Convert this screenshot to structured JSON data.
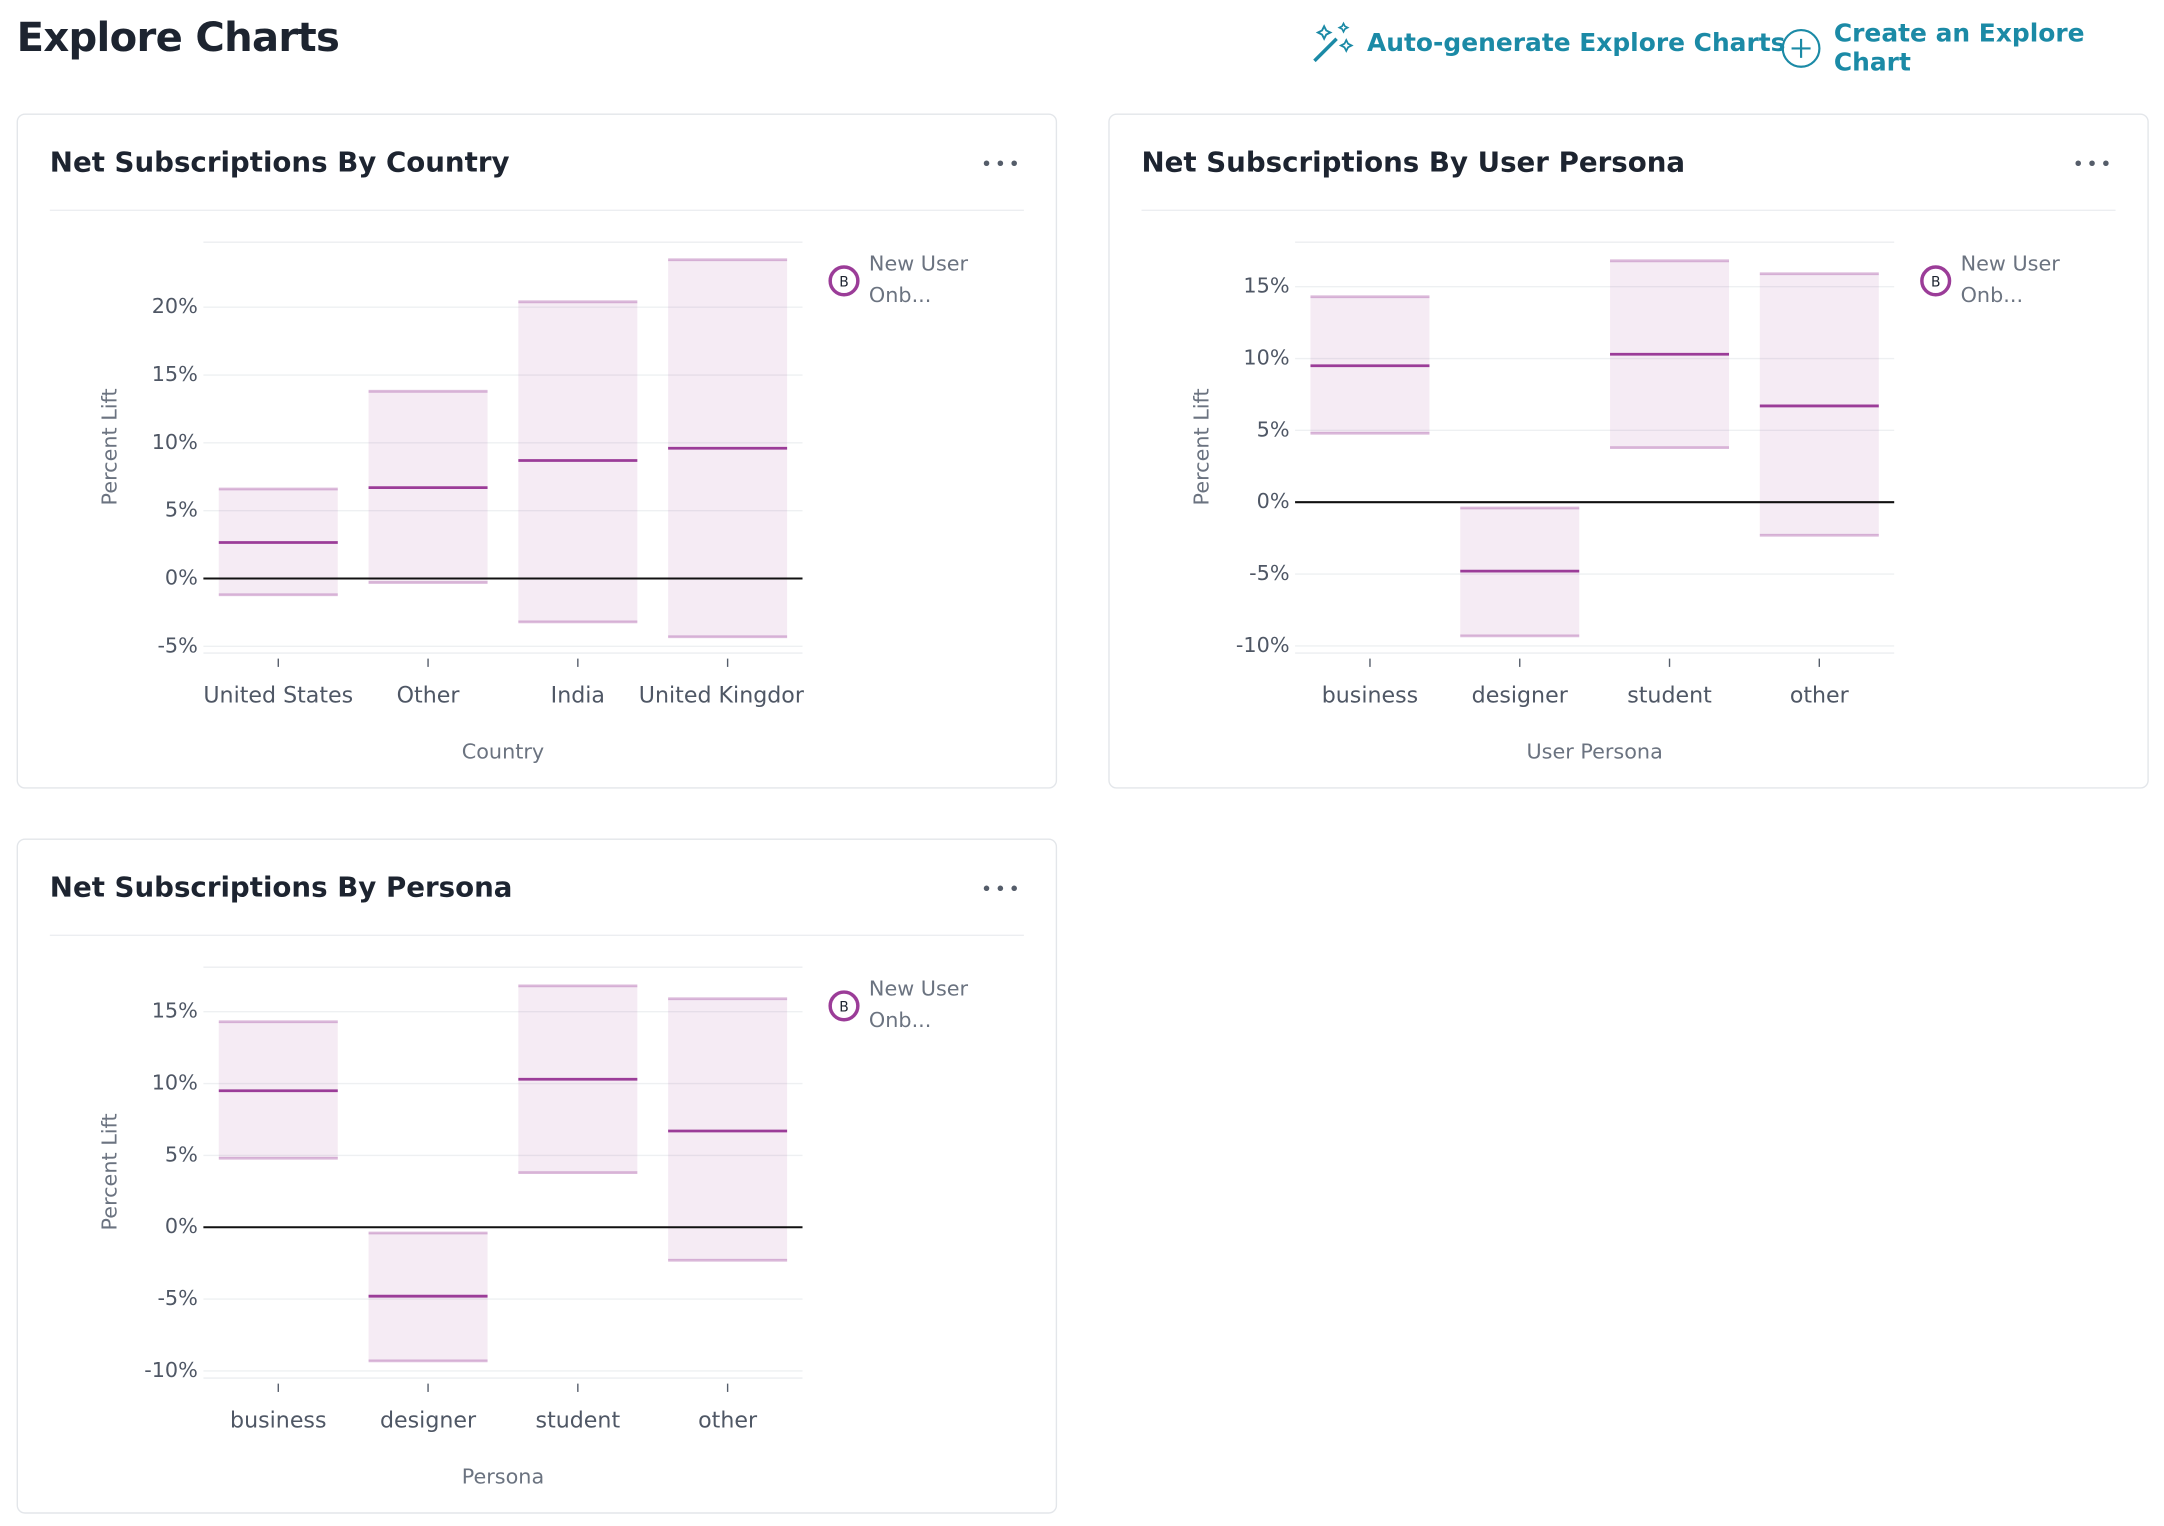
{
  "header": {
    "title": "Explore Charts",
    "actions": [
      "Auto-generate Explore Charts",
      "Create an Explore Chart"
    ]
  },
  "chart_data": [
    {
      "type": "range",
      "title": "Net Subscriptions By Country",
      "x_label": "Country",
      "y_label": "Percent Lift",
      "categories": [
        "United States",
        "Other",
        "India",
        "United Kingdom"
      ],
      "series": [
        {
          "name": "New User Onb...",
          "badge": "B",
          "color": "#9b3c98",
          "values": [
            2.65,
            6.7,
            8.7,
            9.6
          ],
          "low": [
            -1.2,
            -0.3,
            -3.2,
            -4.3
          ],
          "high": [
            6.6,
            13.8,
            20.4,
            23.5
          ]
        }
      ],
      "ylim": [
        -5.5,
        24.8
      ],
      "yticks": [
        {
          "value": -5,
          "label": "-5%"
        },
        {
          "value": 0,
          "label": "0%"
        },
        {
          "value": 5,
          "label": "5%"
        },
        {
          "value": 10,
          "label": "10%"
        },
        {
          "value": 15,
          "label": "15%"
        },
        {
          "value": 20,
          "label": "20%"
        }
      ]
    },
    {
      "type": "range",
      "title": "Net Subscriptions By User Persona",
      "x_label": "User Persona",
      "y_label": "Percent Lift",
      "categories": [
        "business",
        "designer",
        "student",
        "other"
      ],
      "series": [
        {
          "name": "New User Onb...",
          "badge": "B",
          "color": "#9b3c98",
          "values": [
            9.5,
            -4.8,
            10.3,
            6.7
          ],
          "low": [
            4.8,
            -9.3,
            3.8,
            -2.3
          ],
          "high": [
            14.3,
            -0.4,
            16.8,
            15.9
          ]
        }
      ],
      "ylim": [
        -10.5,
        18.1
      ],
      "yticks": [
        {
          "value": -10,
          "label": "-10%"
        },
        {
          "value": -5,
          "label": "-5%"
        },
        {
          "value": 0,
          "label": "0%"
        },
        {
          "value": 5,
          "label": "5%"
        },
        {
          "value": 10,
          "label": "10%"
        },
        {
          "value": 15,
          "label": "15%"
        }
      ]
    },
    {
      "type": "range",
      "title": "Net Subscriptions By Persona",
      "x_label": "Persona",
      "y_label": "Percent Lift",
      "categories": [
        "business",
        "designer",
        "student",
        "other"
      ],
      "series": [
        {
          "name": "New User Onb...",
          "badge": "B",
          "color": "#9b3c98",
          "values": [
            9.5,
            -4.8,
            10.3,
            6.7
          ],
          "low": [
            4.8,
            -9.3,
            3.8,
            -2.3
          ],
          "high": [
            14.3,
            -0.4,
            16.8,
            15.9
          ]
        }
      ],
      "ylim": [
        -10.5,
        18.1
      ],
      "yticks": [
        {
          "value": -10,
          "label": "-10%"
        },
        {
          "value": -5,
          "label": "-5%"
        },
        {
          "value": 0,
          "label": "0%"
        },
        {
          "value": 5,
          "label": "5%"
        },
        {
          "value": 10,
          "label": "10%"
        },
        {
          "value": 15,
          "label": "15%"
        }
      ]
    }
  ]
}
